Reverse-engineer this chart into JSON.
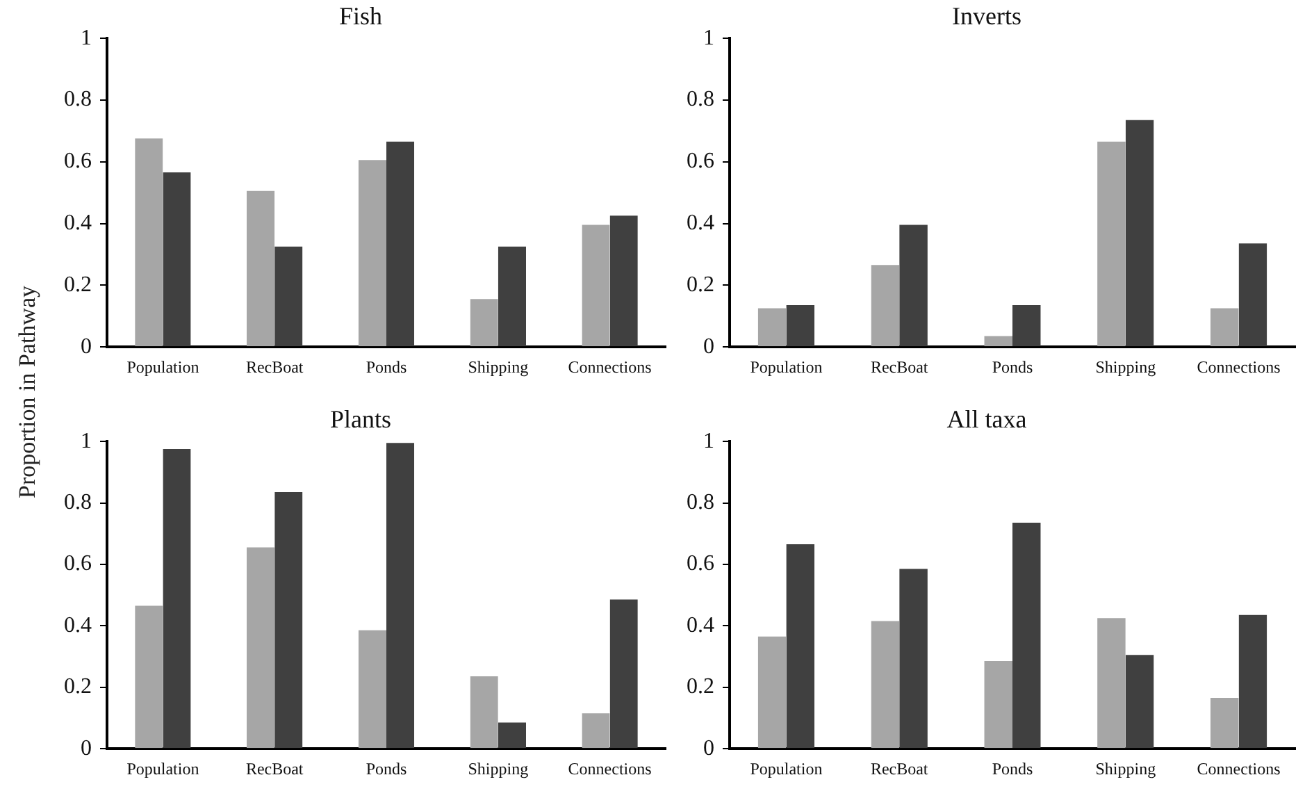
{
  "chart_data": [
    {
      "type": "bar",
      "title": "Fish",
      "ylabel": "Proportion in Pathway",
      "categories": [
        "Population",
        "RecBoat",
        "Ponds",
        "Shipping",
        "Connections"
      ],
      "series": [
        {
          "color": "#a6a6a6",
          "values": [
            0.68,
            0.51,
            0.61,
            0.16,
            0.4
          ]
        },
        {
          "color": "#404040",
          "values": [
            0.57,
            0.33,
            0.67,
            0.33,
            0.43
          ]
        }
      ],
      "ylim": [
        0,
        1
      ],
      "yticks": [
        0,
        0.2,
        0.4,
        0.6,
        0.8,
        1
      ],
      "grid": false,
      "legend": false
    },
    {
      "type": "bar",
      "title": "Inverts",
      "categories": [
        "Population",
        "RecBoat",
        "Ponds",
        "Shipping",
        "Connections"
      ],
      "series": [
        {
          "color": "#a6a6a6",
          "values": [
            0.13,
            0.27,
            0.04,
            0.67,
            0.13
          ]
        },
        {
          "color": "#404040",
          "values": [
            0.14,
            0.4,
            0.14,
            0.74,
            0.34
          ]
        }
      ],
      "ylim": [
        0,
        1
      ],
      "yticks": [
        0,
        0.2,
        0.4,
        0.6,
        0.8,
        1
      ],
      "grid": false,
      "legend": false
    },
    {
      "type": "bar",
      "title": "Plants",
      "categories": [
        "Population",
        "RecBoat",
        "Ponds",
        "Shipping",
        "Connections"
      ],
      "series": [
        {
          "color": "#a6a6a6",
          "values": [
            0.47,
            0.66,
            0.39,
            0.24,
            0.12
          ]
        },
        {
          "color": "#404040",
          "values": [
            0.98,
            0.84,
            1.0,
            0.09,
            0.49
          ]
        }
      ],
      "ylim": [
        0,
        1
      ],
      "yticks": [
        0,
        0.2,
        0.4,
        0.6,
        0.8,
        1
      ],
      "grid": false,
      "legend": false
    },
    {
      "type": "bar",
      "title": "All taxa",
      "categories": [
        "Population",
        "RecBoat",
        "Ponds",
        "Shipping",
        "Connections"
      ],
      "series": [
        {
          "color": "#a6a6a6",
          "values": [
            0.37,
            0.42,
            0.29,
            0.43,
            0.17
          ]
        },
        {
          "color": "#404040",
          "values": [
            0.67,
            0.59,
            0.74,
            0.31,
            0.44
          ]
        }
      ],
      "ylim": [
        0,
        1
      ],
      "yticks": [
        0,
        0.2,
        0.4,
        0.6,
        0.8,
        1
      ],
      "grid": false,
      "legend": false
    }
  ]
}
